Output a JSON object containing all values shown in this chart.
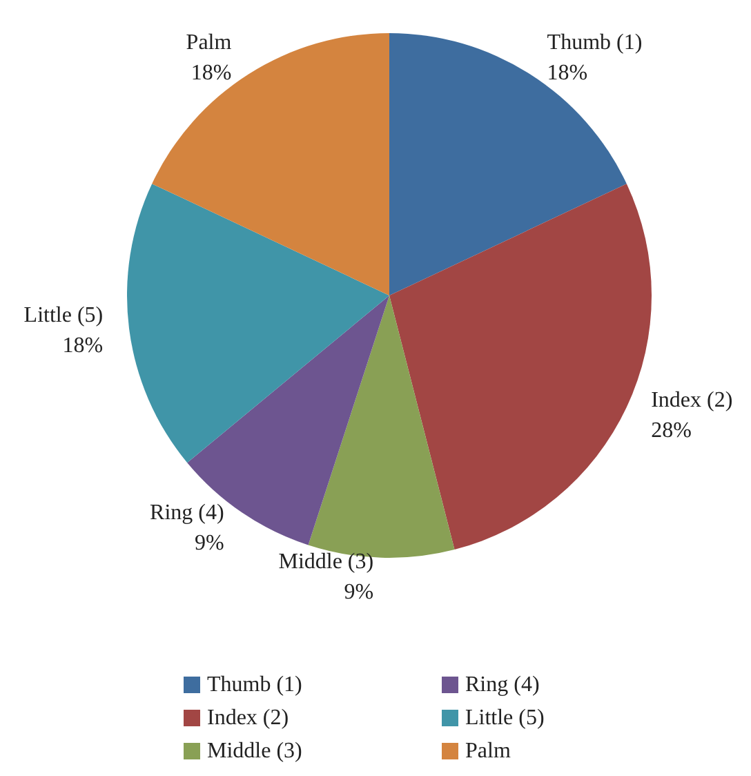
{
  "chart_data": {
    "type": "pie",
    "categories": [
      "Thumb (1)",
      "Index (2)",
      "Middle (3)",
      "Ring (4)",
      "Little (5)",
      "Palm"
    ],
    "values": [
      18,
      28,
      9,
      9,
      18,
      18
    ],
    "colors": [
      "#3e6d9f",
      "#a24644",
      "#89a055",
      "#6d5590",
      "#4095a8",
      "#d4843f"
    ],
    "value_labels": [
      "18%",
      "28%",
      "9%",
      "9%",
      "18%",
      "18%"
    ],
    "legend": "bottom"
  }
}
